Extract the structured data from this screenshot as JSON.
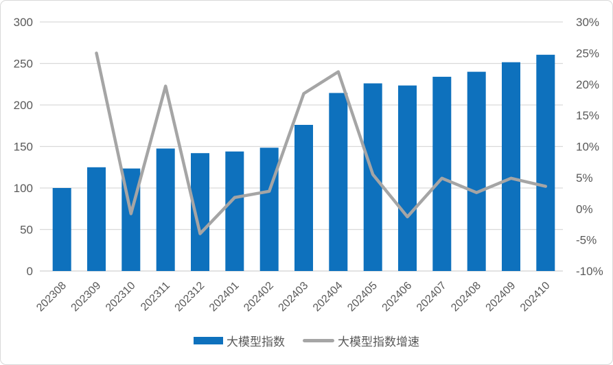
{
  "chart_data": {
    "type": "bar",
    "combo": "bar+line",
    "title": "",
    "categories": [
      "202308",
      "202309",
      "202310",
      "202311",
      "202312",
      "202401",
      "202402",
      "202403",
      "202404",
      "202405",
      "202406",
      "202407",
      "202408",
      "202409",
      "202410"
    ],
    "series": [
      {
        "name": "大模型指数",
        "type": "bar",
        "axis": "left",
        "color": "#0e71bd",
        "values": [
          100,
          125,
          123.5,
          147.5,
          142,
          144,
          148.5,
          176,
          214.5,
          226,
          223.5,
          234,
          240,
          251.5,
          260.5
        ]
      },
      {
        "name": "大模型指数增速",
        "type": "line",
        "axis": "right",
        "color": "#a5a5a5",
        "values": [
          null,
          25.0,
          -0.8,
          19.7,
          -4.0,
          1.8,
          2.8,
          18.5,
          22.0,
          5.5,
          -1.3,
          4.9,
          2.6,
          4.9,
          3.6
        ]
      }
    ],
    "left_axis": {
      "min": 0,
      "max": 300,
      "step": 50,
      "labels": [
        "300",
        "250",
        "200",
        "150",
        "100",
        "50",
        "0"
      ]
    },
    "right_axis": {
      "min": -10,
      "max": 30,
      "step": 5,
      "labels": [
        "30%",
        "25%",
        "20%",
        "15%",
        "10%",
        "5%",
        "0%",
        "-5%",
        "-10%"
      ]
    },
    "grid": {
      "horizontal": true,
      "vertical": false
    },
    "legend_position": "bottom",
    "x_label_rotation_deg": 45
  },
  "legend": {
    "items": [
      {
        "label": "大模型指数",
        "swatch": "bar",
        "color": "#0e71bd"
      },
      {
        "label": "大模型指数增速",
        "swatch": "line",
        "color": "#a5a5a5"
      }
    ]
  },
  "style": {
    "background": "#ffffff",
    "border_color": "#d8d8d8",
    "gridline_color": "#d9d9d9",
    "axis_line_color": "#d0d0d0",
    "axis_text_color": "#595959",
    "bar_color": "#0e71bd",
    "line_color": "#a5a5a5"
  }
}
